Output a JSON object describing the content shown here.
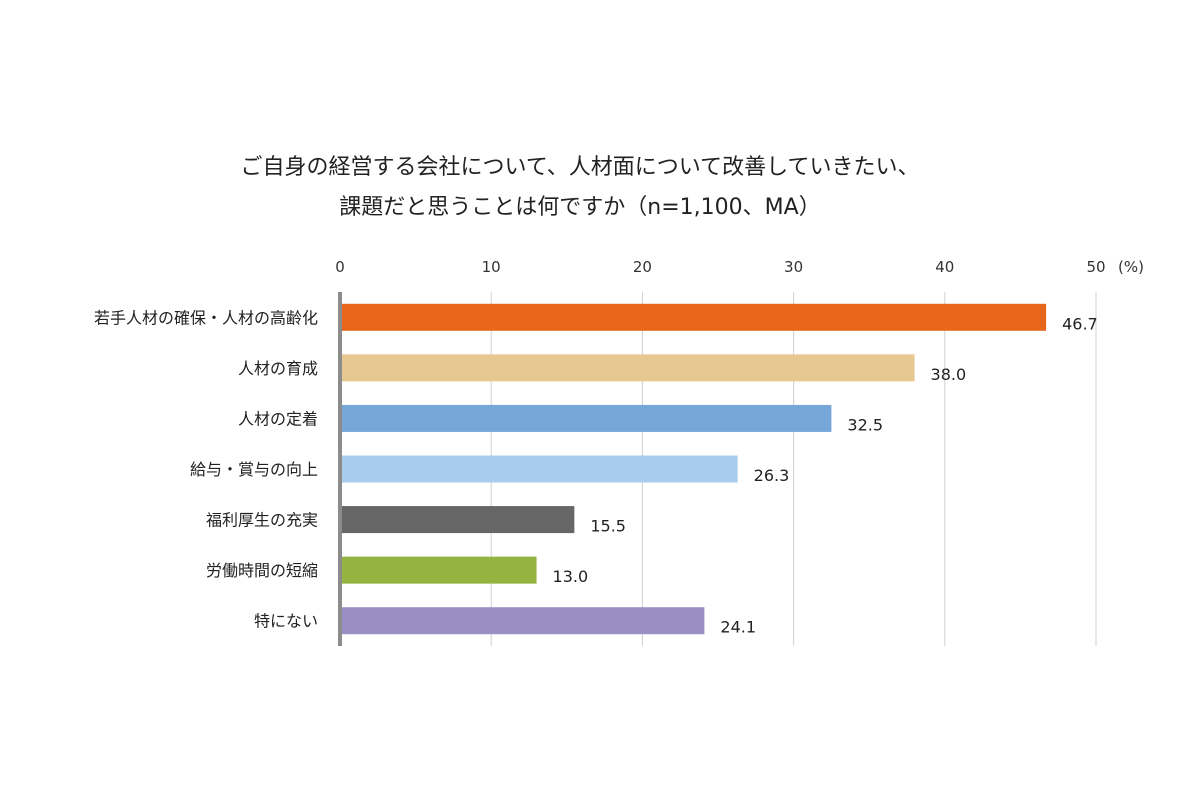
{
  "chart_data": {
    "type": "bar",
    "orientation": "horizontal",
    "title_lines": [
      "ご自身の経営する会社について、人材面について改善していきたい、",
      "課題だと思うことは何ですか（n=1,100、MA）"
    ],
    "unit_label": "(%)",
    "xlim": [
      0,
      50
    ],
    "ticks": [
      "0",
      "10",
      "20",
      "30",
      "40",
      "50"
    ],
    "grid": true,
    "categories": [
      "若手人材の確保・人材の高齢化",
      "人材の育成",
      "人材の定着",
      "給与・賞与の向上",
      "福利厚生の充実",
      "労働時間の短縮",
      "特にない"
    ],
    "values": [
      46.7,
      38.0,
      32.5,
      26.3,
      15.5,
      13.0,
      24.1
    ],
    "value_labels": [
      "46.7",
      "38.0",
      "32.5",
      "26.3",
      "15.5",
      "13.0",
      "24.1"
    ],
    "colors": [
      "#e8661a",
      "#e8c891",
      "#77a6d8",
      "#a8cdec",
      "#666666",
      "#93b440",
      "#9a8fc5"
    ]
  }
}
